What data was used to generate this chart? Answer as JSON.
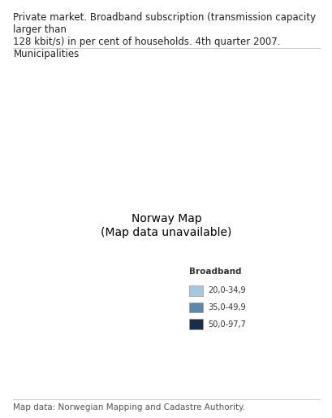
{
  "title": "Private market. Broadband subscription (transmission capacity larger than\n128 kbit/s) in per cent of households. 4th quarter 2007. Municipalities",
  "title_fontsize": 8.5,
  "footnote": "Map data: Norwegian Mapping and Cadastre Authority.",
  "footnote_fontsize": 7.5,
  "legend_title": "Broadband",
  "legend_labels": [
    "20,0-34,9",
    "35,0-49,9",
    "50,0-97,7"
  ],
  "legend_colors": [
    "#a8c8e0",
    "#5a8aaa",
    "#1a2d4a"
  ],
  "background_color": "#f0f0f0",
  "map_background": "#ffffff",
  "figsize": [
    4.1,
    5.14
  ],
  "dpi": 100
}
